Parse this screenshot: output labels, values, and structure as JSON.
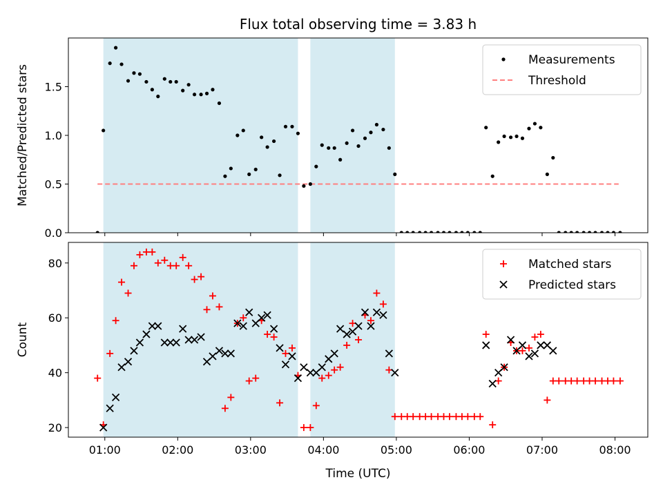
{
  "chart_data": [
    {
      "type": "scatter",
      "title": "Flux total observing time = 3.83 h",
      "ylabel": "Matched/Predicted stars",
      "xlabel": "",
      "x_range_hours": [
        0.5,
        8.45
      ],
      "ylim": [
        0.0,
        2.0
      ],
      "y_ticks": [
        "0.0",
        "0.5",
        "1.0",
        "1.5"
      ],
      "y_tick_values": [
        0.0,
        0.5,
        1.0,
        1.5
      ],
      "legend_position": "top-right",
      "shaded_intervals_hours": [
        [
          0.98,
          3.65
        ],
        [
          3.82,
          4.98
        ]
      ],
      "shade_color": "#add8e6",
      "threshold": {
        "name": "Threshold",
        "y": 0.5,
        "x_from": 0.9,
        "x_to": 8.05,
        "color": "#ff7f7f"
      },
      "series": [
        {
          "name": "Measurements",
          "color": "#000000",
          "marker": "dot",
          "x": [
            0.9,
            0.98,
            1.07,
            1.15,
            1.23,
            1.32,
            1.4,
            1.48,
            1.57,
            1.65,
            1.73,
            1.82,
            1.9,
            1.98,
            2.07,
            2.15,
            2.23,
            2.32,
            2.4,
            2.48,
            2.57,
            2.65,
            2.73,
            2.82,
            2.9,
            2.98,
            3.07,
            3.15,
            3.23,
            3.32,
            3.4,
            3.48,
            3.57,
            3.65,
            3.73,
            3.82,
            3.9,
            3.98,
            4.07,
            4.15,
            4.23,
            4.32,
            4.4,
            4.48,
            4.57,
            4.65,
            4.73,
            4.82,
            4.9,
            4.98,
            5.07,
            5.15,
            5.23,
            5.32,
            5.4,
            5.48,
            5.57,
            5.65,
            5.73,
            5.82,
            5.9,
            5.98,
            6.07,
            6.15,
            6.23,
            6.32,
            6.4,
            6.48,
            6.57,
            6.65,
            6.73,
            6.82,
            6.9,
            6.98,
            7.07,
            7.15,
            7.23,
            7.32,
            7.4,
            7.48,
            7.57,
            7.65,
            7.73,
            7.82,
            7.9,
            7.98,
            8.07
          ],
          "y": [
            0.0,
            1.05,
            1.74,
            1.9,
            1.73,
            1.56,
            1.64,
            1.63,
            1.55,
            1.47,
            1.4,
            1.58,
            1.55,
            1.55,
            1.46,
            1.52,
            1.42,
            1.42,
            1.43,
            1.47,
            1.33,
            0.58,
            0.66,
            1.0,
            1.05,
            0.6,
            0.65,
            0.98,
            0.88,
            0.94,
            0.59,
            1.09,
            1.09,
            1.02,
            0.48,
            0.5,
            0.68,
            0.9,
            0.87,
            0.87,
            0.75,
            0.92,
            1.05,
            0.89,
            0.97,
            1.03,
            1.11,
            1.06,
            0.87,
            0.6,
            0.0,
            0.0,
            0.0,
            0.0,
            0.0,
            0.0,
            0.0,
            0.0,
            0.0,
            0.0,
            0.0,
            0.0,
            0.0,
            0.0,
            1.08,
            0.58,
            0.93,
            0.99,
            0.98,
            0.99,
            0.97,
            1.07,
            1.12,
            1.08,
            0.6,
            0.77,
            0.0,
            0.0,
            0.0,
            0.0,
            0.0,
            0.0,
            0.0,
            0.0,
            0.0,
            0.0,
            0.0
          ]
        }
      ]
    },
    {
      "type": "scatter",
      "title": "",
      "ylabel": "Count",
      "xlabel": "Time (UTC)",
      "x_range_hours": [
        0.5,
        8.45
      ],
      "x_ticks": [
        "01:00",
        "02:00",
        "03:00",
        "04:00",
        "05:00",
        "06:00",
        "07:00",
        "08:00"
      ],
      "x_tick_values_hours": [
        1,
        2,
        3,
        4,
        5,
        6,
        7,
        8
      ],
      "ylim": [
        16.5,
        87.5
      ],
      "y_ticks": [
        "20",
        "40",
        "60",
        "80"
      ],
      "y_tick_values": [
        20,
        40,
        60,
        80
      ],
      "legend_position": "top-right",
      "shaded_intervals_hours": [
        [
          0.98,
          3.65
        ],
        [
          3.82,
          4.98
        ]
      ],
      "shade_color": "#add8e6",
      "series": [
        {
          "name": "Matched stars",
          "color": "#ff0000",
          "marker": "plus",
          "x": [
            0.9,
            0.98,
            1.07,
            1.15,
            1.23,
            1.32,
            1.4,
            1.48,
            1.57,
            1.65,
            1.73,
            1.82,
            1.9,
            1.98,
            2.07,
            2.15,
            2.23,
            2.32,
            2.4,
            2.48,
            2.57,
            2.65,
            2.73,
            2.82,
            2.9,
            2.98,
            3.07,
            3.15,
            3.23,
            3.32,
            3.4,
            3.48,
            3.57,
            3.65,
            3.73,
            3.82,
            3.9,
            3.98,
            4.07,
            4.15,
            4.23,
            4.32,
            4.4,
            4.48,
            4.57,
            4.65,
            4.73,
            4.82,
            4.9,
            4.98,
            5.07,
            5.15,
            5.23,
            5.32,
            5.4,
            5.48,
            5.57,
            5.65,
            5.73,
            5.82,
            5.9,
            5.98,
            6.07,
            6.15,
            6.23,
            6.32,
            6.4,
            6.48,
            6.57,
            6.65,
            6.73,
            6.82,
            6.9,
            6.98,
            7.07,
            7.15,
            7.23,
            7.32,
            7.4,
            7.48,
            7.57,
            7.65,
            7.73,
            7.82,
            7.9,
            7.98,
            8.07
          ],
          "y": [
            38,
            21,
            47,
            59,
            73,
            69,
            79,
            83,
            84,
            84,
            80,
            81,
            79,
            79,
            82,
            79,
            74,
            75,
            63,
            68,
            64,
            27,
            31,
            58,
            60,
            37,
            38,
            59,
            54,
            53,
            29,
            47,
            49,
            39,
            20,
            20,
            28,
            38,
            39,
            41,
            42,
            50,
            58,
            52,
            61,
            59,
            69,
            65,
            41,
            24,
            24,
            24,
            24,
            24,
            24,
            24,
            24,
            24,
            24,
            24,
            24,
            24,
            24,
            24,
            54,
            21,
            37,
            42,
            51,
            48,
            48,
            49,
            53,
            54,
            30,
            37,
            37,
            37,
            37,
            37,
            37,
            37,
            37,
            37,
            37,
            37,
            37
          ]
        },
        {
          "name": "Predicted stars",
          "color": "#000000",
          "marker": "x",
          "x": [
            0.98,
            1.07,
            1.15,
            1.23,
            1.32,
            1.4,
            1.48,
            1.57,
            1.65,
            1.73,
            1.82,
            1.9,
            1.98,
            2.07,
            2.15,
            2.23,
            2.32,
            2.4,
            2.48,
            2.57,
            2.65,
            2.73,
            2.82,
            2.9,
            2.98,
            3.07,
            3.15,
            3.23,
            3.32,
            3.4,
            3.48,
            3.57,
            3.65,
            3.73,
            3.82,
            3.9,
            3.98,
            4.07,
            4.15,
            4.23,
            4.32,
            4.4,
            4.48,
            4.57,
            4.65,
            4.73,
            4.82,
            4.9,
            4.98,
            6.23,
            6.32,
            6.4,
            6.48,
            6.57,
            6.65,
            6.73,
            6.82,
            6.9,
            6.98,
            7.07,
            7.15
          ],
          "y": [
            20,
            27,
            31,
            42,
            44,
            48,
            51,
            54,
            57,
            57,
            51,
            51,
            51,
            56,
            52,
            52,
            53,
            44,
            46,
            48,
            47,
            47,
            58,
            57,
            62,
            58,
            60,
            61,
            56,
            49,
            43,
            46,
            38,
            42,
            40,
            40,
            42,
            45,
            47,
            56,
            54,
            55,
            57,
            62,
            57,
            62,
            61,
            47,
            40,
            50,
            36,
            40,
            42,
            52,
            48,
            50,
            46,
            47,
            50,
            50,
            48
          ]
        }
      ]
    }
  ]
}
